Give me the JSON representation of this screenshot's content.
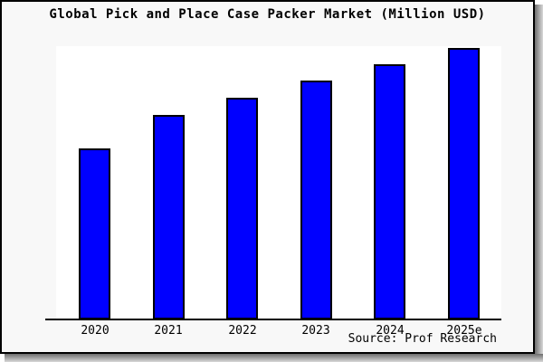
{
  "title": "Global Pick and Place Case Packer Market (Million USD)",
  "source": "Source: Prof Research",
  "colors": {
    "bar_fill": "#0000FF",
    "bar_border": "#000000",
    "plot_bg": "#FFFFFF",
    "outer_bg": "#F8F8F8",
    "frame_border": "#000000"
  },
  "chart_data": {
    "type": "bar",
    "title": "Global Pick and Place Case Packer Market (Million USD)",
    "categories": [
      "2020",
      "2021",
      "2022",
      "2023",
      "2024",
      "2025e"
    ],
    "values": [
      63,
      75.3,
      81.7,
      88,
      94,
      100
    ],
    "ylim": [
      0,
      100
    ],
    "value_scale_note": "y-axis has no tick labels; values are bar heights as percent of the tallest (2025e) bar, estimated from pixels",
    "xlabel": "",
    "ylabel": "",
    "grid": false,
    "legend": false
  }
}
